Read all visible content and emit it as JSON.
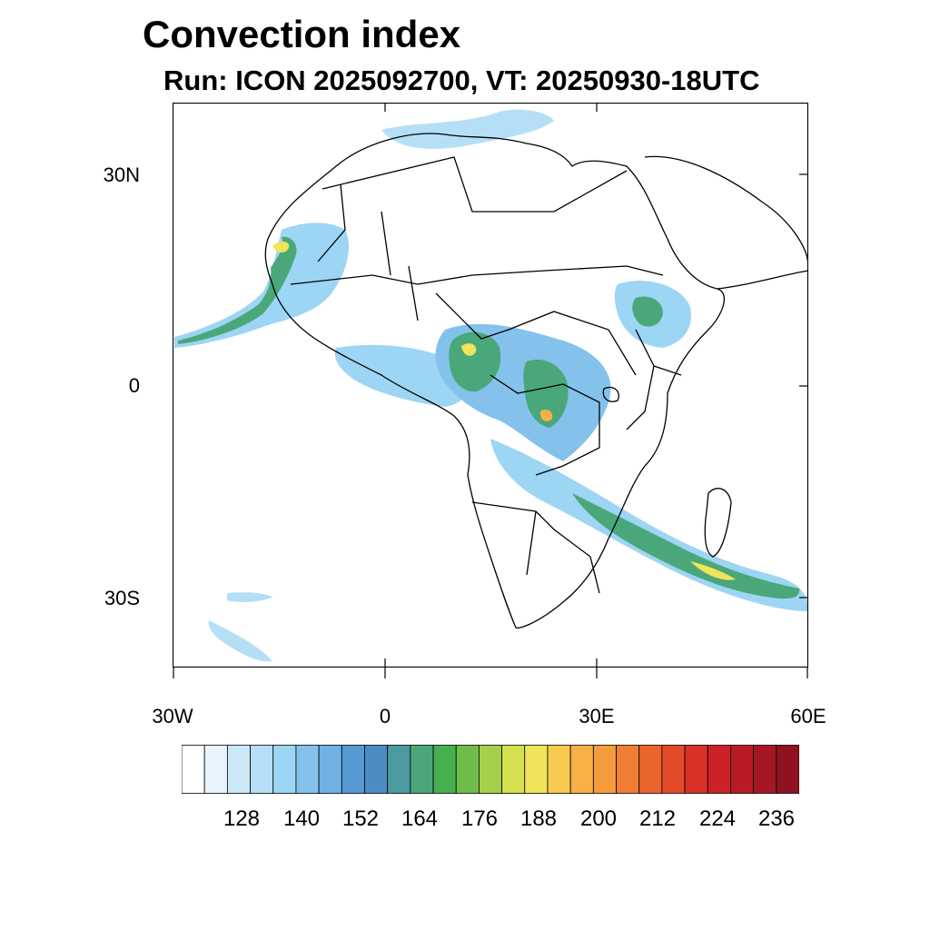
{
  "header": {
    "title": "Convection index",
    "subtitle": "Run: ICON 2025092700,  VT: 20250930-18UTC"
  },
  "axes": {
    "lat_labels": [
      "30N",
      "0",
      "30S"
    ],
    "lon_labels": [
      "30W",
      "0",
      "30E",
      "60E"
    ]
  },
  "colorbar": {
    "labels": [
      "128",
      "140",
      "152",
      "164",
      "176",
      "188",
      "200",
      "212",
      "224",
      "236"
    ],
    "colors": [
      "#ffffff",
      "#e8f5fd",
      "#cce9f8",
      "#b5dff6",
      "#9dd5f4",
      "#84c2ec",
      "#6fb1e4",
      "#5799d3",
      "#4b8cc4",
      "#4a9aa0",
      "#4aa77a",
      "#44b050",
      "#6fbd48",
      "#a6cf4a",
      "#d4df50",
      "#f1e45a",
      "#f7c94e",
      "#f7b046",
      "#f69a3e",
      "#f17e35",
      "#ea642d",
      "#e24a28",
      "#d93027",
      "#cc2128",
      "#b81b26",
      "#a51723",
      "#8f1220"
    ]
  },
  "colors": {
    "coast": "#000000",
    "field_light": "#b5dff6",
    "field_mid": "#5799d3",
    "field_green": "#44b050",
    "field_yellow": "#f1e45a",
    "field_red": "#e24a28"
  }
}
